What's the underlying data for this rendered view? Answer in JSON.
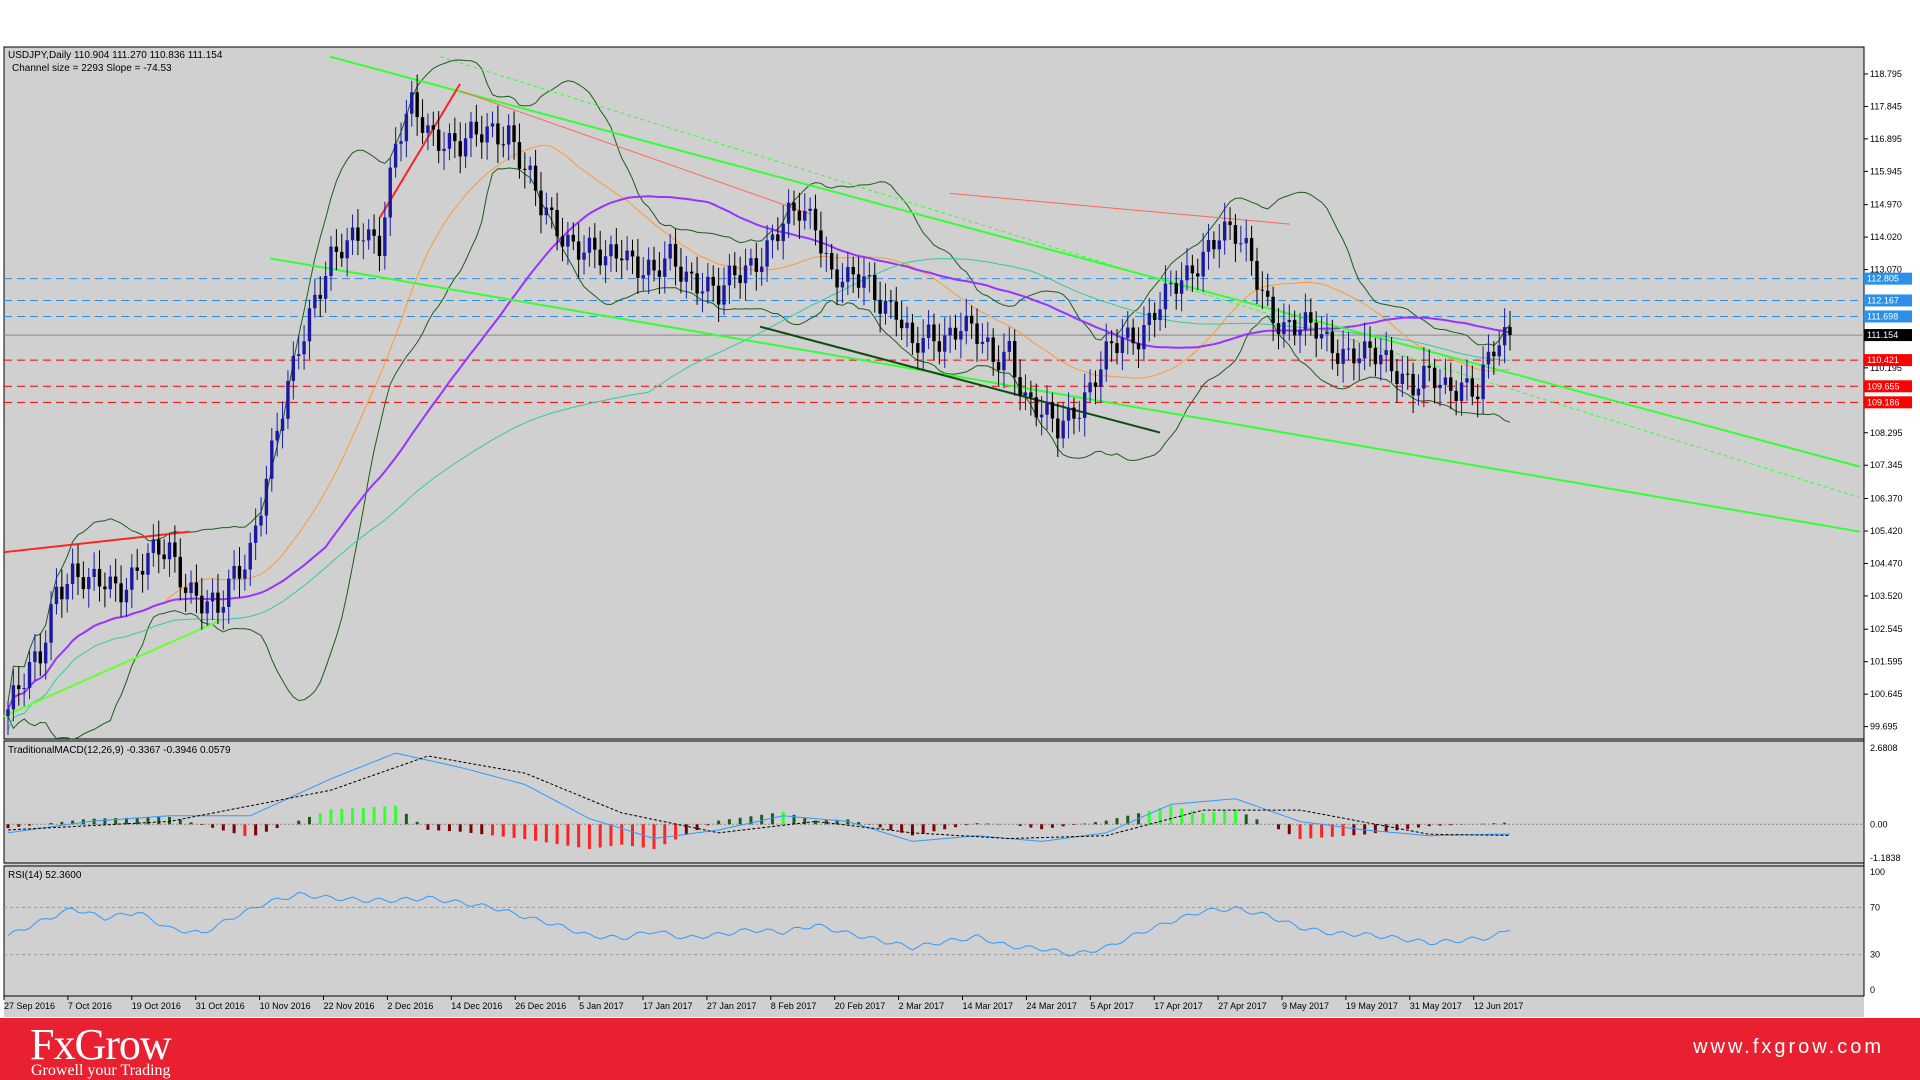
{
  "chart_data": {
    "type": "candlestick",
    "symbol_header": "USDJPY,Daily  110.904 111.270 110.836 111.154",
    "channel_info": "Channel size = 2293 Slope = -74.53",
    "price_axis_ticks": [
      "118.795",
      "117.845",
      "116.895",
      "115.945",
      "114.970",
      "114.020",
      "113.070",
      "112.120",
      "111.170",
      "110.195",
      "109.245",
      "108.295",
      "107.345",
      "106.370",
      "105.420",
      "104.470",
      "103.520",
      "102.545",
      "101.595",
      "100.645",
      "99.695"
    ],
    "price_labels": [
      {
        "value": "112.805",
        "price": 112.805,
        "color": "#2e8fe8",
        "style": "dash"
      },
      {
        "value": "112.167",
        "price": 112.167,
        "color": "#2e8fe8",
        "style": "dash"
      },
      {
        "value": "111.698",
        "price": 111.698,
        "color": "#2e8fe8",
        "style": "dash"
      },
      {
        "value": "111.154",
        "price": 111.154,
        "color": "#000000",
        "style": "solid"
      },
      {
        "value": "110.421",
        "price": 110.421,
        "color": "#ff0000",
        "style": "dash"
      },
      {
        "value": "109.655",
        "price": 109.655,
        "color": "#ff0000",
        "style": "dash"
      },
      {
        "value": "109.186",
        "price": 109.186,
        "color": "#ff0000",
        "style": "dash"
      }
    ],
    "date_labels": [
      "27 Sep 2016",
      "7 Oct 2016",
      "19 Oct 2016",
      "31 Oct 2016",
      "10 Nov 2016",
      "22 Nov 2016",
      "2 Dec 2016",
      "14 Dec 2016",
      "26 Dec 2016",
      "5 Jan 2017",
      "17 Jan 2017",
      "27 Jan 2017",
      "8 Feb 2017",
      "20 Feb 2017",
      "2 Mar 2017",
      "14 Mar 2017",
      "24 Mar 2017",
      "5 Apr 2017",
      "17 Apr 2017",
      "27 Apr 2017",
      "9 May 2017",
      "19 May 2017",
      "31 May 2017",
      "12 Jun 2017"
    ],
    "close_path": [
      [
        0,
        100.2
      ],
      [
        3,
        100.9
      ],
      [
        6,
        101.8
      ],
      [
        9,
        103.9
      ],
      [
        12,
        104.1
      ],
      [
        15,
        103.7
      ],
      [
        18,
        104.0
      ],
      [
        21,
        103.9
      ],
      [
        24,
        104.2
      ],
      [
        27,
        104.6
      ],
      [
        30,
        104.9
      ],
      [
        33,
        104.0
      ],
      [
        36,
        103.3
      ],
      [
        39,
        102.9
      ],
      [
        42,
        104.2
      ],
      [
        45,
        105.0
      ],
      [
        48,
        106.9
      ],
      [
        51,
        108.8
      ],
      [
        54,
        110.9
      ],
      [
        57,
        112.4
      ],
      [
        60,
        113.3
      ],
      [
        63,
        113.6
      ],
      [
        66,
        114.3
      ],
      [
        69,
        114.0
      ],
      [
        72,
        116.6
      ],
      [
        75,
        117.7
      ],
      [
        78,
        117.2
      ],
      [
        81,
        117.0
      ],
      [
        84,
        116.6
      ],
      [
        87,
        116.9
      ],
      [
        90,
        117.2
      ],
      [
        93,
        117.2
      ],
      [
        96,
        115.9
      ],
      [
        99,
        114.8
      ],
      [
        102,
        114.4
      ],
      [
        105,
        113.9
      ],
      [
        108,
        113.5
      ],
      [
        111,
        113.2
      ],
      [
        114,
        113.8
      ],
      [
        117,
        113.3
      ],
      [
        120,
        112.8
      ],
      [
        123,
        113.3
      ],
      [
        126,
        113.0
      ],
      [
        129,
        112.8
      ],
      [
        132,
        112.2
      ],
      [
        135,
        112.8
      ],
      [
        138,
        113.3
      ],
      [
        141,
        113.8
      ],
      [
        144,
        114.3
      ],
      [
        147,
        114.7
      ],
      [
        150,
        114.6
      ],
      [
        153,
        113.0
      ],
      [
        156,
        112.6
      ],
      [
        159,
        112.7
      ],
      [
        162,
        112.3
      ],
      [
        165,
        112.0
      ],
      [
        168,
        110.6
      ],
      [
        171,
        111.0
      ],
      [
        174,
        111.2
      ],
      [
        177,
        111.6
      ],
      [
        180,
        111.0
      ],
      [
        183,
        110.3
      ],
      [
        186,
        110.9
      ],
      [
        189,
        109.3
      ],
      [
        192,
        108.7
      ],
      [
        195,
        108.4
      ],
      [
        198,
        109.1
      ],
      [
        201,
        109.6
      ],
      [
        204,
        110.4
      ],
      [
        207,
        111.0
      ],
      [
        210,
        111.3
      ],
      [
        213,
        111.9
      ],
      [
        216,
        112.3
      ],
      [
        219,
        112.8
      ],
      [
        222,
        113.7
      ],
      [
        225,
        114.2
      ],
      [
        228,
        113.9
      ],
      [
        231,
        113.3
      ],
      [
        234,
        112.2
      ],
      [
        237,
        111.3
      ],
      [
        240,
        111.2
      ],
      [
        243,
        111.4
      ],
      [
        246,
        111.0
      ],
      [
        249,
        110.5
      ],
      [
        252,
        110.4
      ],
      [
        255,
        110.6
      ],
      [
        258,
        110.3
      ],
      [
        261,
        109.6
      ],
      [
        264,
        109.8
      ],
      [
        267,
        109.6
      ],
      [
        270,
        109.9
      ],
      [
        273,
        109.5
      ],
      [
        276,
        110.6
      ],
      [
        279,
        111.154
      ]
    ],
    "macd": {
      "label": "TraditionalMACD(12,26,9) -0.3367 -0.3946 0.0579",
      "axis_ticks": [
        "2.6808",
        "0.00",
        "-1.1838"
      ],
      "min": -1.1838,
      "max": 2.6808,
      "main_line": [
        [
          0,
          -0.3
        ],
        [
          15,
          0.1
        ],
        [
          30,
          0.3
        ],
        [
          45,
          0.3
        ],
        [
          60,
          1.6
        ],
        [
          72,
          2.5
        ],
        [
          84,
          2.0
        ],
        [
          96,
          1.4
        ],
        [
          108,
          0.2
        ],
        [
          120,
          -0.5
        ],
        [
          132,
          -0.2
        ],
        [
          144,
          0.3
        ],
        [
          156,
          0.1
        ],
        [
          168,
          -0.6
        ],
        [
          180,
          -0.4
        ],
        [
          192,
          -0.6
        ],
        [
          204,
          -0.3
        ],
        [
          216,
          0.7
        ],
        [
          228,
          0.9
        ],
        [
          240,
          0.1
        ],
        [
          252,
          -0.2
        ],
        [
          264,
          -0.4
        ],
        [
          279,
          -0.34
        ]
      ],
      "signal_line": [
        [
          0,
          -0.2
        ],
        [
          30,
          0.1
        ],
        [
          60,
          1.2
        ],
        [
          78,
          2.4
        ],
        [
          96,
          1.8
        ],
        [
          114,
          0.4
        ],
        [
          132,
          -0.3
        ],
        [
          150,
          0.1
        ],
        [
          168,
          -0.3
        ],
        [
          186,
          -0.5
        ],
        [
          204,
          -0.4
        ],
        [
          222,
          0.5
        ],
        [
          240,
          0.5
        ],
        [
          264,
          -0.35
        ],
        [
          279,
          -0.39
        ]
      ]
    },
    "rsi": {
      "label": "RSI(14) 52.3600",
      "axis_ticks": [
        "100",
        "70",
        "30",
        "0"
      ],
      "values": [
        [
          0,
          46
        ],
        [
          6,
          58
        ],
        [
          12,
          69
        ],
        [
          18,
          61
        ],
        [
          24,
          66
        ],
        [
          30,
          52
        ],
        [
          36,
          48
        ],
        [
          42,
          62
        ],
        [
          48,
          74
        ],
        [
          54,
          81
        ],
        [
          60,
          78
        ],
        [
          66,
          76
        ],
        [
          72,
          76
        ],
        [
          78,
          78
        ],
        [
          84,
          74
        ],
        [
          90,
          70
        ],
        [
          96,
          62
        ],
        [
          102,
          55
        ],
        [
          108,
          46
        ],
        [
          114,
          44
        ],
        [
          120,
          50
        ],
        [
          126,
          44
        ],
        [
          132,
          47
        ],
        [
          138,
          51
        ],
        [
          144,
          49
        ],
        [
          150,
          55
        ],
        [
          156,
          48
        ],
        [
          162,
          42
        ],
        [
          168,
          36
        ],
        [
          174,
          41
        ],
        [
          180,
          45
        ],
        [
          186,
          37
        ],
        [
          192,
          35
        ],
        [
          198,
          30
        ],
        [
          204,
          36
        ],
        [
          210,
          48
        ],
        [
          216,
          58
        ],
        [
          222,
          67
        ],
        [
          228,
          69
        ],
        [
          234,
          63
        ],
        [
          240,
          53
        ],
        [
          246,
          48
        ],
        [
          252,
          47
        ],
        [
          258,
          44
        ],
        [
          264,
          40
        ],
        [
          270,
          42
        ],
        [
          276,
          45
        ],
        [
          279,
          52.36
        ]
      ]
    }
  },
  "footer": {
    "brand": "FxGrow",
    "tagline": "Growell your Trading",
    "website": "www.fxgrow.com"
  }
}
